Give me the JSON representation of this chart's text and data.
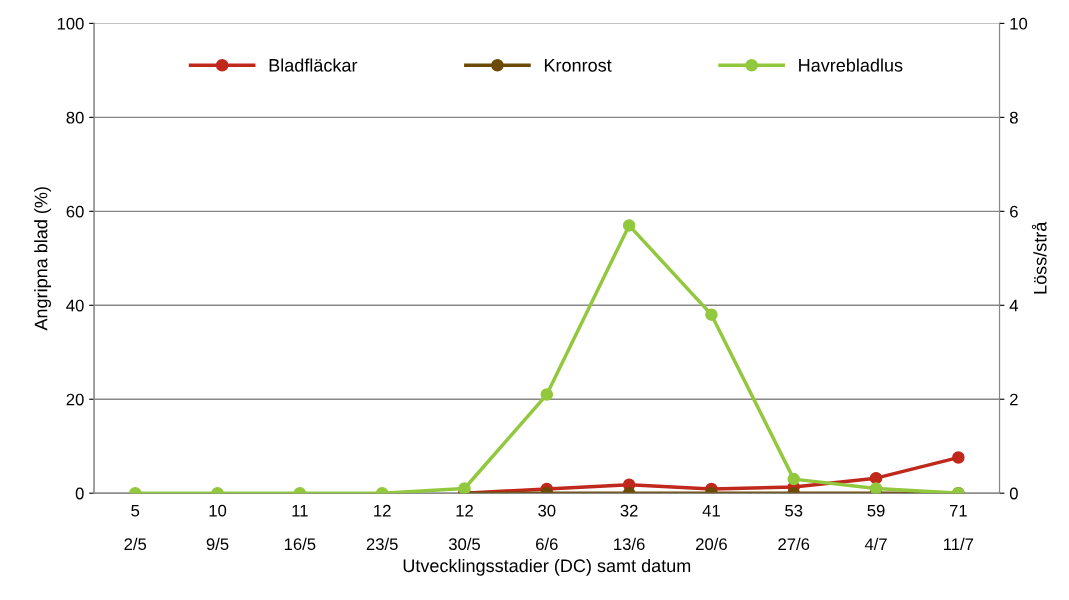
{
  "chart_data": {
    "type": "line",
    "xlabel": "Utvecklingsstadier (DC) samt datum",
    "ylabel": "Angripna blad (%)",
    "y2label": "Löss/strå",
    "categories": [
      "5\n\n2/5",
      "10\n\n9/5",
      "11\n\n16/5",
      "12\n\n23/5",
      "12\n\n30/5",
      "30\n\n6/6",
      "32\n\n13/6",
      "41\n\n20/6",
      "53\n\n27/6",
      "59\n\n4/7",
      "71\n\n11/7"
    ],
    "series": [
      {
        "name": "Bladfläckar",
        "color": "#c0281c",
        "values": [
          null,
          null,
          null,
          null,
          0,
          0.9,
          1.8,
          0.9,
          1.3,
          3.2,
          7.6
        ]
      },
      {
        "name": "Kronrost",
        "color": "#6b4a06",
        "values": [
          null,
          null,
          null,
          null,
          0,
          0,
          0,
          0,
          0,
          0,
          0
        ]
      },
      {
        "name": "Havrebladlus",
        "color": "#92c83e",
        "axis": "y2",
        "values": [
          0,
          0,
          0,
          0,
          0.1,
          2.1,
          5.7,
          3.8,
          0.3,
          0.1,
          0
        ]
      }
    ],
    "ylim": [
      0,
      100
    ],
    "yticks": [
      0,
      20,
      40,
      60,
      80,
      100
    ],
    "y2lim": [
      0,
      10
    ],
    "y2ticks": [
      0,
      2,
      4,
      6,
      8,
      10
    ],
    "grid": "y",
    "legend": "top",
    "marker": "circle",
    "line_style": "solid"
  }
}
